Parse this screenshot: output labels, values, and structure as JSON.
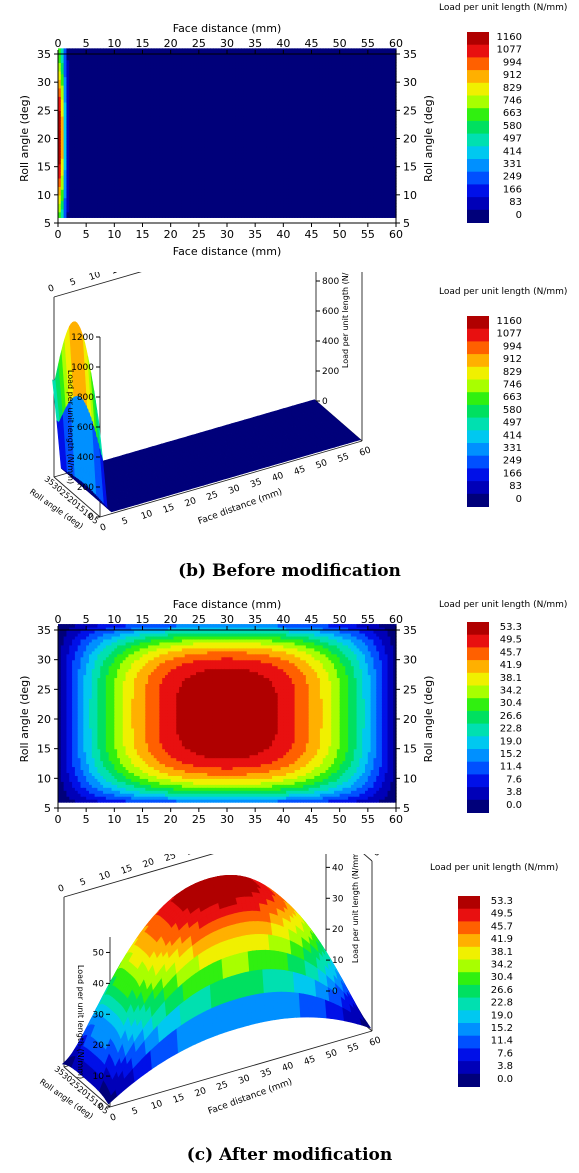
{
  "chart_data": [
    {
      "type": "heatmap",
      "view": "contour-2d",
      "panel": "before",
      "xlabel": "Face distance (mm)",
      "ylabel": "Roll angle (deg)",
      "xlim": [
        0,
        60
      ],
      "ylim": [
        5,
        35
      ],
      "xticks": [
        0,
        5,
        10,
        15,
        20,
        25,
        30,
        35,
        40,
        45,
        50,
        55,
        60
      ],
      "yticks": [
        5,
        10,
        15,
        20,
        25,
        30,
        35
      ],
      "zlabel": "Load per unit length (N/mm)",
      "levels": [
        0,
        83,
        166,
        249,
        331,
        414,
        497,
        580,
        663,
        746,
        829,
        912,
        994,
        1077,
        1160
      ],
      "peak": 1160,
      "face_width": 60,
      "roll_min": 6,
      "roll_max": 36
    },
    {
      "type": "heatmap",
      "view": "surface-3d",
      "panel": "before",
      "xlabel": "Face distance (mm)",
      "ylabel": "Roll angle (deg)",
      "zlabel": "Load per unit length (N/mm)",
      "xticks": [
        0,
        5,
        10,
        15,
        20,
        25,
        30,
        35,
        40,
        45,
        50,
        55,
        60
      ],
      "yticks": [
        5,
        10,
        15,
        20,
        25,
        30,
        35
      ],
      "zticks": [
        0,
        200,
        400,
        600,
        800,
        1000,
        1200
      ],
      "zlim": [
        0,
        1200
      ],
      "levels": [
        0,
        83,
        166,
        249,
        331,
        414,
        497,
        580,
        663,
        746,
        829,
        912,
        994,
        1077,
        1160
      ],
      "peak": 1160,
      "face_width": 60,
      "roll_min": 6,
      "roll_max": 36
    },
    {
      "type": "heatmap",
      "view": "contour-2d",
      "panel": "after",
      "xlabel": "Face distance (mm)",
      "ylabel": "Roll angle (deg)",
      "xlim": [
        0,
        60
      ],
      "ylim": [
        5,
        35
      ],
      "xticks": [
        0,
        5,
        10,
        15,
        20,
        25,
        30,
        35,
        40,
        45,
        50,
        55,
        60
      ],
      "yticks": [
        5,
        10,
        15,
        20,
        25,
        30,
        35
      ],
      "zlabel": "Load per unit length (N/mm)",
      "levels": [
        0.0,
        3.8,
        7.6,
        11.4,
        15.2,
        19.0,
        22.8,
        26.6,
        30.4,
        34.2,
        38.1,
        41.9,
        45.7,
        49.5,
        53.3
      ],
      "peak": 53.3,
      "face_width": 60,
      "roll_min": 6,
      "roll_max": 36
    },
    {
      "type": "heatmap",
      "view": "surface-3d",
      "panel": "after",
      "xlabel": "Face distance (mm)",
      "ylabel": "Roll angle (deg)",
      "zlabel": "Load per unit length (N/mm)",
      "xticks": [
        0,
        5,
        10,
        15,
        20,
        25,
        30,
        35,
        40,
        45,
        50,
        55,
        60
      ],
      "yticks": [
        5,
        10,
        15,
        20,
        25,
        30,
        35
      ],
      "zticks": [
        0,
        10,
        20,
        30,
        40,
        50
      ],
      "zlim": [
        0,
        55
      ],
      "levels": [
        0.0,
        3.8,
        7.6,
        11.4,
        15.2,
        19.0,
        22.8,
        26.6,
        30.4,
        34.2,
        38.1,
        41.9,
        45.7,
        49.5,
        53.3
      ],
      "peak": 53.3,
      "face_width": 60,
      "roll_min": 6,
      "roll_max": 36
    }
  ],
  "colors": [
    "#00007a",
    "#0000b8",
    "#0010e8",
    "#0050ff",
    "#0090ff",
    "#00c8f0",
    "#00e0b0",
    "#00e060",
    "#30f010",
    "#a8ff00",
    "#f0f000",
    "#ffb000",
    "#ff6000",
    "#e81010",
    "#b00000"
  ],
  "captions": {
    "before": "(b) Before modification",
    "after": "(c) After modification"
  }
}
